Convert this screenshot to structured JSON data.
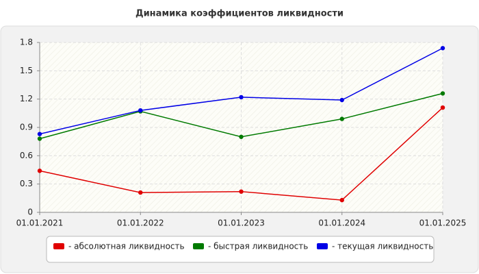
{
  "chart_data": {
    "type": "line",
    "title": "Динамика коэффициентов ликвидности",
    "categories": [
      "01.01.2021",
      "01.01.2022",
      "01.01.2023",
      "01.01.2024",
      "01.01.2025"
    ],
    "series": [
      {
        "name": "- абсолютная ликвидность",
        "color": "#e00000",
        "values": [
          0.44,
          0.21,
          0.22,
          0.13,
          1.11
        ]
      },
      {
        "name": "- быстрая ликвидность",
        "color": "#007a00",
        "values": [
          0.78,
          1.07,
          0.8,
          0.99,
          1.26
        ]
      },
      {
        "name": "- текущая ликвидность",
        "color": "#0000e6",
        "values": [
          0.83,
          1.08,
          1.22,
          1.19,
          1.74
        ]
      }
    ],
    "ylim": [
      0,
      1.8
    ],
    "yticks": [
      0,
      0.3,
      0.6,
      0.9,
      1.2,
      1.5,
      1.8
    ],
    "grid": true
  }
}
